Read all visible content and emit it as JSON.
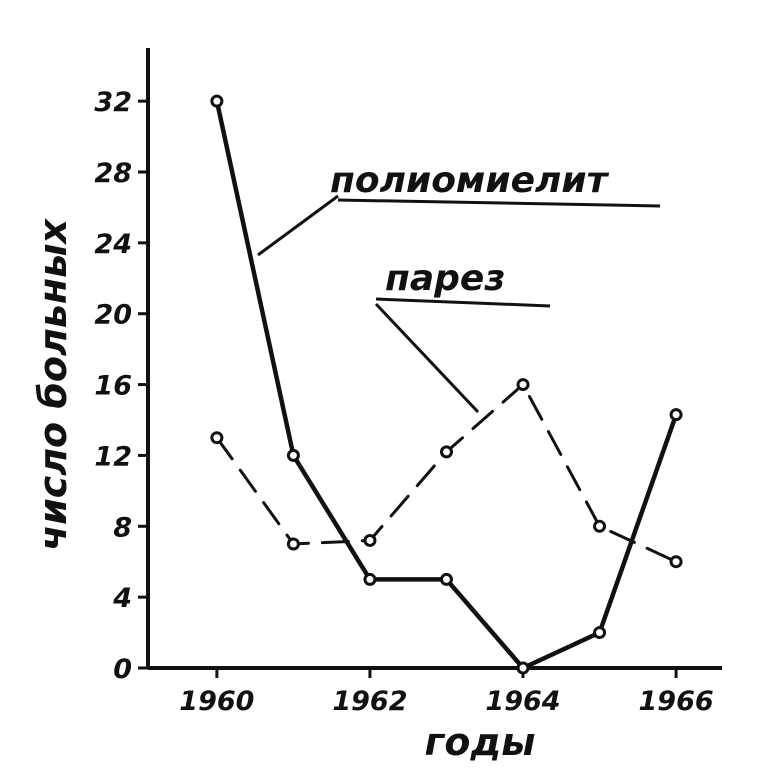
{
  "chart_data": {
    "type": "line",
    "xlabel": "годы",
    "ylabel": "число больных",
    "xlim": [
      1959.1,
      1966.6
    ],
    "ylim": [
      0,
      35
    ],
    "x_ticks": [
      1960,
      1962,
      1964,
      1966
    ],
    "x_tick_labels": [
      "1960",
      "1962",
      "1964",
      "1966"
    ],
    "y_ticks": [
      0,
      4,
      8,
      12,
      16,
      20,
      24,
      28,
      32
    ],
    "y_tick_labels": [
      "0",
      "4",
      "8",
      "12",
      "16",
      "20",
      "24",
      "28",
      "32"
    ],
    "grid": false,
    "series": [
      {
        "name": "полиомиелит",
        "style": "solid",
        "color": "#111111",
        "x": [
          1960,
          1961,
          1962,
          1963,
          1964,
          1965,
          1966
        ],
        "y": [
          32,
          12,
          5,
          5,
          0,
          2,
          14.3
        ]
      },
      {
        "name": "парез",
        "style": "dashed",
        "color": "#111111",
        "x": [
          1960,
          1961,
          1962,
          1963,
          1964,
          1965,
          1966
        ],
        "y": [
          13,
          7,
          7.2,
          12.2,
          16,
          8,
          6
        ]
      }
    ]
  }
}
